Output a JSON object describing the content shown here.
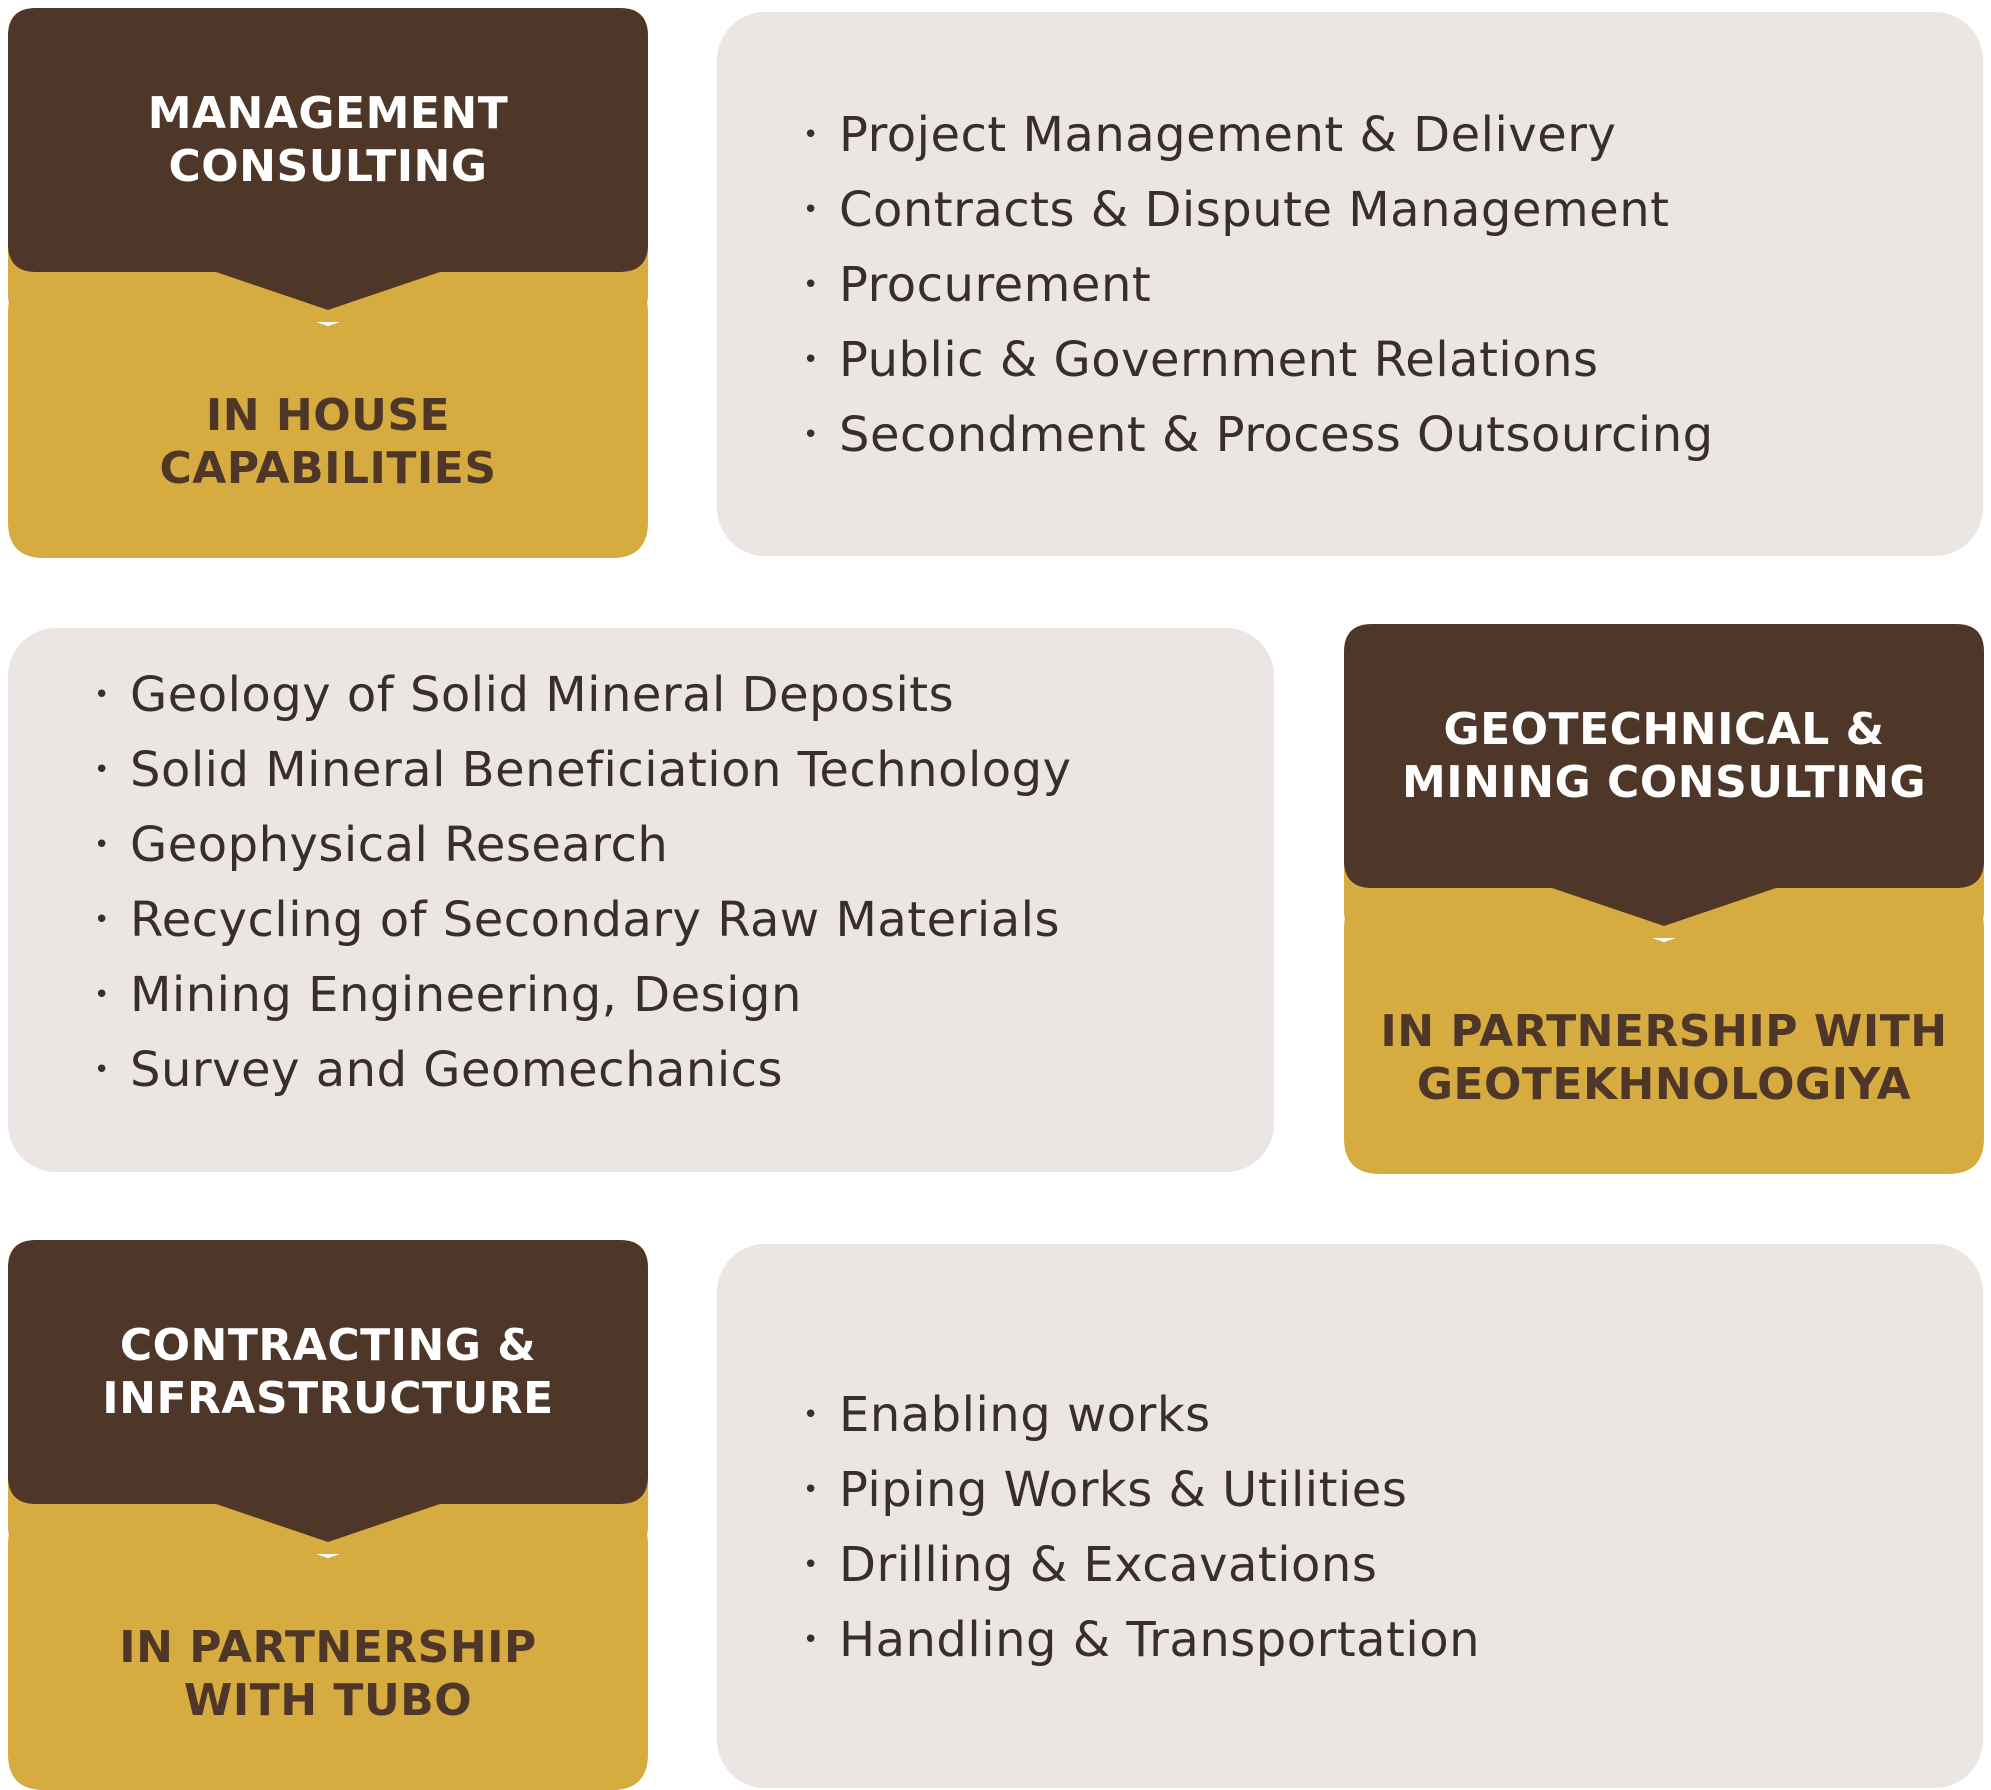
{
  "colors": {
    "dark_brown": "#4e3629",
    "gold": "#d6ab3f",
    "panel_bg": "#ebe6e4",
    "text_dark": "#3a2e2a"
  },
  "sections": [
    {
      "title": "MANAGEMENT\nCONSULTING",
      "subtitle": "IN HOUSE\nCAPABILITIES",
      "items": [
        "Project Management & Delivery",
        "Contracts & Dispute Management",
        "Procurement",
        "Public & Government Relations",
        "Secondment & Process Outsourcing"
      ]
    },
    {
      "title": "GEOTECHNICAL &\nMINING CONSULTING",
      "subtitle": "IN PARTNERSHIP WITH\nGEOTEKHNOLOGIYA",
      "items": [
        "Geology of Solid Mineral Deposits",
        "Solid Mineral Beneficiation Technology",
        "Geophysical Research",
        "Recycling of Secondary Raw Materials",
        "Mining Engineering, Design",
        "Survey and Geomechanics"
      ]
    },
    {
      "title": "CONTRACTING &\nINFRASTRUCTURE",
      "subtitle": "IN PARTNERSHIP\nWITH TUBO",
      "items": [
        "Enabling works",
        "Piping Works & Utilities",
        "Drilling & Excavations",
        "Handling & Transportation"
      ]
    }
  ]
}
